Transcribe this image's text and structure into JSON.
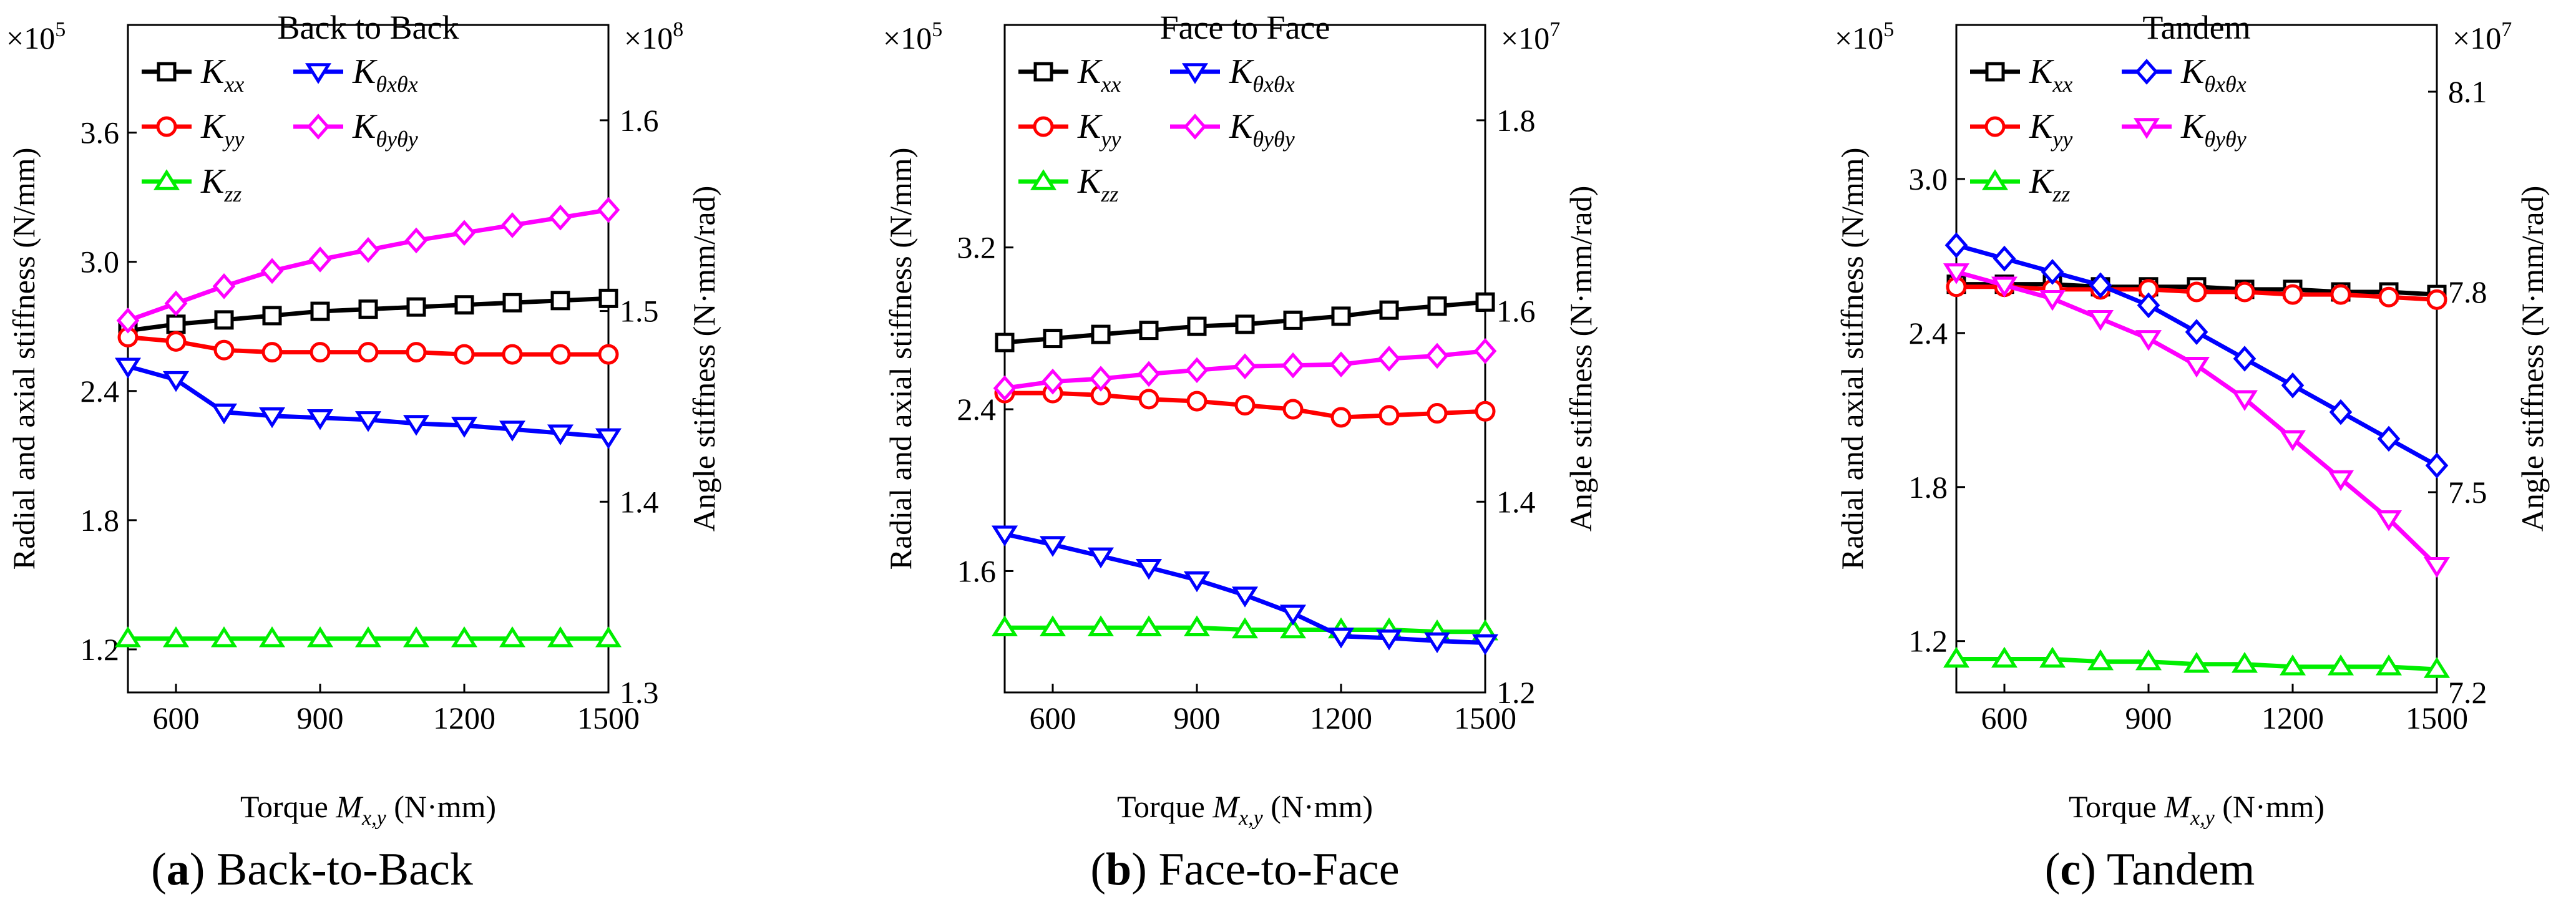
{
  "chart_data": [
    {
      "type": "line",
      "title": "Back to Back",
      "caption_letter": "a",
      "caption_text": "Back-to-Back",
      "xlabel_prefix": "Torque ",
      "xlabel_var": "M",
      "xlabel_sub": "x,y",
      "xlabel_suffix": " (N·mm)",
      "ylabel_left": "Radial and axial stiffness (N/mm)",
      "ylabel_right": "Angle stiffness (N·mm/rad)",
      "left_multiplier": {
        "base": "×10",
        "exp": "5"
      },
      "right_multiplier": {
        "base": "×10",
        "exp": "8"
      },
      "xlim": [
        500,
        1500
      ],
      "xticks": [
        600,
        900,
        1200,
        1500
      ],
      "xtick_labels": [
        "600",
        "900",
        "1200",
        "1500"
      ],
      "ylim_left": [
        1.0,
        4.1
      ],
      "yticks_left": [
        1.2,
        1.8,
        2.4,
        3.0,
        3.6
      ],
      "ytick_labels_left": [
        "1.2",
        "1.8",
        "2.4",
        "3.0",
        "3.6"
      ],
      "ylim_right": [
        1.3,
        1.65
      ],
      "yticks_right": [
        1.3,
        1.4,
        1.5,
        1.6
      ],
      "ytick_labels_right": [
        "1.3",
        "1.4",
        "1.5",
        "1.6"
      ],
      "x": [
        500,
        600,
        700,
        800,
        900,
        1000,
        1100,
        1200,
        1300,
        1400,
        1500
      ],
      "series": [
        {
          "name": "K_xx",
          "label_main": "K",
          "label_sub": "xx",
          "axis": "left",
          "color": "#000000",
          "marker": "square",
          "values": [
            2.68,
            2.71,
            2.73,
            2.75,
            2.77,
            2.78,
            2.79,
            2.8,
            2.81,
            2.82,
            2.83
          ]
        },
        {
          "name": "K_yy",
          "label_main": "K",
          "label_sub": "yy",
          "axis": "left",
          "color": "#ff0000",
          "marker": "circle",
          "values": [
            2.65,
            2.63,
            2.59,
            2.58,
            2.58,
            2.58,
            2.58,
            2.57,
            2.57,
            2.57,
            2.57
          ]
        },
        {
          "name": "K_zz",
          "label_main": "K",
          "label_sub": "zz",
          "axis": "left",
          "color": "#00ee00",
          "marker": "triangle-up",
          "values": [
            1.25,
            1.25,
            1.25,
            1.25,
            1.25,
            1.25,
            1.25,
            1.25,
            1.25,
            1.25,
            1.25
          ]
        },
        {
          "name": "K_θxθx",
          "label_main": "K",
          "label_sub": "θxθx",
          "axis": "right",
          "color": "#0000ff",
          "marker": "triangle-down",
          "values": [
            1.471,
            1.464,
            1.447,
            1.445,
            1.444,
            1.443,
            1.441,
            1.44,
            1.438,
            1.436,
            1.434
          ]
        },
        {
          "name": "K_θyθy",
          "label_main": "K",
          "label_sub": "θyθy",
          "axis": "right",
          "color": "#ff00ff",
          "marker": "diamond",
          "values": [
            1.495,
            1.504,
            1.513,
            1.521,
            1.527,
            1.532,
            1.537,
            1.541,
            1.545,
            1.549,
            1.553
          ]
        }
      ]
    },
    {
      "type": "line",
      "title": "Face to Face",
      "caption_letter": "b",
      "caption_text": "Face-to-Face",
      "xlabel_prefix": "Torque ",
      "xlabel_var": "M",
      "xlabel_sub": "x,y",
      "xlabel_suffix": " (N·mm)",
      "ylabel_left": "Radial and axial stiffness (N/mm)",
      "ylabel_right": "Angle stiffness (N·mm/rad)",
      "left_multiplier": {
        "base": "×10",
        "exp": "5"
      },
      "right_multiplier": {
        "base": "×10",
        "exp": "7"
      },
      "xlim": [
        500,
        1500
      ],
      "xticks": [
        600,
        900,
        1200,
        1500
      ],
      "xtick_labels": [
        "600",
        "900",
        "1200",
        "1500"
      ],
      "ylim_left": [
        1.0,
        4.3
      ],
      "yticks_left": [
        1.6,
        2.4,
        3.2
      ],
      "ytick_labels_left": [
        "1.6",
        "2.4",
        "3.2"
      ],
      "ylim_right": [
        1.2,
        1.9
      ],
      "yticks_right": [
        1.2,
        1.4,
        1.6,
        1.8
      ],
      "ytick_labels_right": [
        "1.2",
        "1.4",
        "1.6",
        "1.8"
      ],
      "x": [
        500,
        600,
        700,
        800,
        900,
        1000,
        1100,
        1200,
        1300,
        1400,
        1500
      ],
      "series": [
        {
          "name": "K_xx",
          "label_main": "K",
          "label_sub": "xx",
          "axis": "left",
          "color": "#000000",
          "marker": "square",
          "values": [
            2.73,
            2.75,
            2.77,
            2.79,
            2.81,
            2.82,
            2.84,
            2.86,
            2.89,
            2.91,
            2.93
          ]
        },
        {
          "name": "K_yy",
          "label_main": "K",
          "label_sub": "yy",
          "axis": "left",
          "color": "#ff0000",
          "marker": "circle",
          "values": [
            2.48,
            2.48,
            2.47,
            2.45,
            2.44,
            2.42,
            2.4,
            2.36,
            2.37,
            2.38,
            2.39
          ]
        },
        {
          "name": "K_zz",
          "label_main": "K",
          "label_sub": "zz",
          "axis": "left",
          "color": "#00ee00",
          "marker": "triangle-up",
          "values": [
            1.32,
            1.32,
            1.32,
            1.32,
            1.32,
            1.31,
            1.31,
            1.31,
            1.31,
            1.3,
            1.3
          ]
        },
        {
          "name": "K_θxθx",
          "label_main": "K",
          "label_sub": "θxθx",
          "axis": "right",
          "color": "#0000ff",
          "marker": "triangle-down",
          "values": [
            1.366,
            1.355,
            1.343,
            1.331,
            1.318,
            1.302,
            1.283,
            1.259,
            1.257,
            1.254,
            1.252
          ]
        },
        {
          "name": "K_θyθy",
          "label_main": "K",
          "label_sub": "θyθy",
          "axis": "right",
          "color": "#ff00ff",
          "marker": "diamond",
          "values": [
            1.519,
            1.526,
            1.529,
            1.534,
            1.538,
            1.542,
            1.543,
            1.544,
            1.55,
            1.553,
            1.558
          ]
        }
      ]
    },
    {
      "type": "line",
      "title": "Tandem",
      "caption_letter": "c",
      "caption_text": "Tandem",
      "xlabel_prefix": "Torque ",
      "xlabel_var": "M",
      "xlabel_sub": "x,y",
      "xlabel_suffix": " (N·mm)",
      "ylabel_left": "Radial and axial stiffness (N/mm)",
      "ylabel_right": "Angle stiffness (N·mm/rad)",
      "left_multiplier": {
        "base": "×10",
        "exp": "5"
      },
      "right_multiplier": {
        "base": "×10",
        "exp": "7"
      },
      "xlim": [
        500,
        1500
      ],
      "xticks": [
        600,
        900,
        1200,
        1500
      ],
      "xtick_labels": [
        "600",
        "900",
        "1200",
        "1500"
      ],
      "ylim_left": [
        1.0,
        3.6
      ],
      "yticks_left": [
        1.2,
        1.8,
        2.4,
        3.0
      ],
      "ytick_labels_left": [
        "1.2",
        "1.8",
        "2.4",
        "3.0"
      ],
      "ylim_right": [
        7.2,
        8.2
      ],
      "yticks_right": [
        7.2,
        7.5,
        7.8,
        8.1
      ],
      "ytick_labels_right": [
        "7.2",
        "7.5",
        "7.8",
        "8.1"
      ],
      "x": [
        500,
        600,
        700,
        800,
        900,
        1000,
        1100,
        1200,
        1300,
        1400,
        1500
      ],
      "series": [
        {
          "name": "K_xx",
          "label_main": "K",
          "label_sub": "xx",
          "axis": "left",
          "color": "#000000",
          "marker": "square",
          "values": [
            2.59,
            2.59,
            2.59,
            2.58,
            2.58,
            2.58,
            2.57,
            2.57,
            2.56,
            2.56,
            2.55
          ]
        },
        {
          "name": "K_yy",
          "label_main": "K",
          "label_sub": "yy",
          "axis": "left",
          "color": "#ff0000",
          "marker": "circle",
          "values": [
            2.58,
            2.58,
            2.57,
            2.57,
            2.57,
            2.56,
            2.56,
            2.55,
            2.55,
            2.54,
            2.53
          ]
        },
        {
          "name": "K_zz",
          "label_main": "K",
          "label_sub": "zz",
          "axis": "left",
          "color": "#00ee00",
          "marker": "triangle-up",
          "values": [
            1.13,
            1.13,
            1.13,
            1.12,
            1.12,
            1.11,
            1.11,
            1.1,
            1.1,
            1.1,
            1.09
          ]
        },
        {
          "name": "K_θxθx",
          "label_main": "K",
          "label_sub": "θxθx",
          "axis": "right",
          "color": "#0000ff",
          "marker": "diamond",
          "values": [
            7.87,
            7.85,
            7.83,
            7.81,
            7.78,
            7.74,
            7.7,
            7.66,
            7.62,
            7.58,
            7.54
          ]
        },
        {
          "name": "K_θyθy",
          "label_main": "K",
          "label_sub": "θyθy",
          "axis": "right",
          "color": "#ff00ff",
          "marker": "triangle-down",
          "values": [
            7.83,
            7.81,
            7.79,
            7.76,
            7.73,
            7.69,
            7.64,
            7.58,
            7.52,
            7.46,
            7.39
          ]
        }
      ]
    }
  ]
}
